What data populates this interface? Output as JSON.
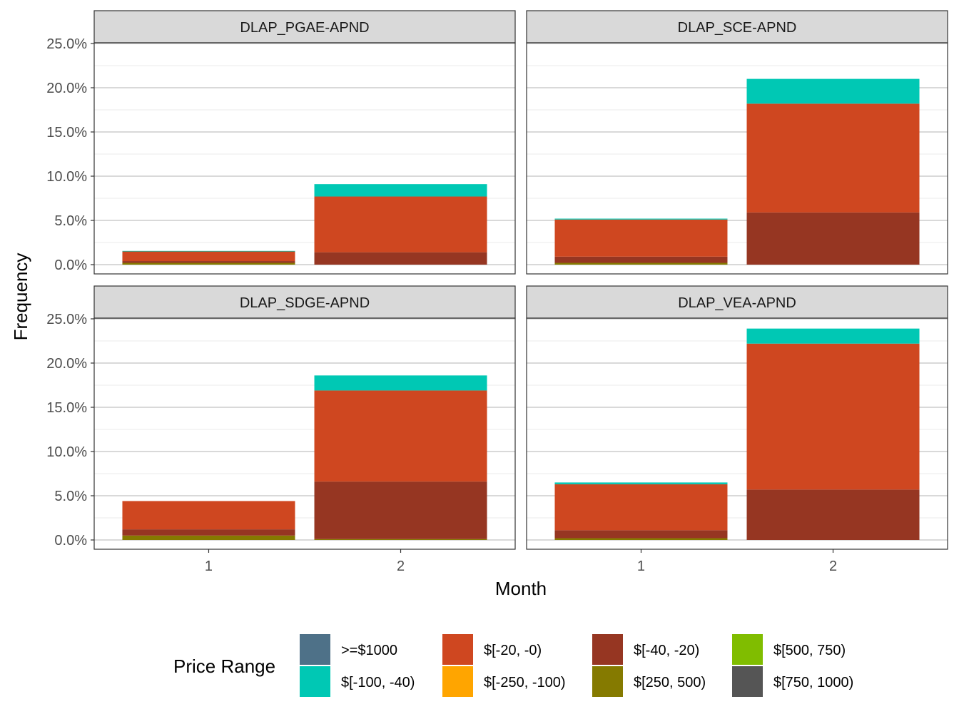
{
  "chart_data": {
    "type": "bar",
    "stacked": true,
    "faceted": true,
    "xlabel": "Month",
    "ylabel": "Frequency",
    "ylim": [
      0,
      0.25
    ],
    "y_ticks": [
      0,
      0.05,
      0.1,
      0.15,
      0.2,
      0.25
    ],
    "y_tick_labels": [
      "0.0%",
      "5.0%",
      "10.0%",
      "15.0%",
      "20.0%",
      "25.0%"
    ],
    "categories": [
      "1",
      "2"
    ],
    "legend": {
      "title": "Price Range",
      "placement": "bottom",
      "items": [
        {
          "label": ">=$1000",
          "color": "#4e7188"
        },
        {
          "label": "$[-100, -40)",
          "color": "#00c8b4"
        },
        {
          "label": "$[-20, -0)",
          "color": "#cf4720"
        },
        {
          "label": "$[-250, -100)",
          "color": "#ffa500"
        },
        {
          "label": "$[-40, -20)",
          "color": "#963622"
        },
        {
          "label": "$[250, 500)",
          "color": "#857a00"
        },
        {
          "label": "$[500, 750)",
          "color": "#80bd00"
        },
        {
          "label": "$[750, 1000)",
          "color": "#555555"
        }
      ]
    },
    "panels": [
      {
        "title": "DLAP_PGAE-APND",
        "series": [
          {
            "name": "$[250, 500)",
            "values": [
              0.002,
              0.0
            ]
          },
          {
            "name": "$[-40, -20)",
            "values": [
              0.002,
              0.014
            ]
          },
          {
            "name": "$[-20, -0)",
            "values": [
              0.011,
              0.063
            ]
          },
          {
            "name": "$[-100, -40)",
            "values": [
              0.0005,
              0.014
            ]
          }
        ]
      },
      {
        "title": "DLAP_SCE-APND",
        "series": [
          {
            "name": "$[250, 500)",
            "values": [
              0.002,
              0.0
            ]
          },
          {
            "name": "$[-40, -20)",
            "values": [
              0.007,
              0.059
            ]
          },
          {
            "name": "$[-20, -0)",
            "values": [
              0.042,
              0.123
            ]
          },
          {
            "name": "$[-100, -40)",
            "values": [
              0.001,
              0.028
            ]
          }
        ]
      },
      {
        "title": "DLAP_SDGE-APND",
        "series": [
          {
            "name": "$[250, 500)",
            "values": [
              0.005,
              0.001
            ]
          },
          {
            "name": "$[-40, -20)",
            "values": [
              0.007,
              0.065
            ]
          },
          {
            "name": "$[-20, -0)",
            "values": [
              0.032,
              0.103
            ]
          },
          {
            "name": "$[-100, -40)",
            "values": [
              0.0,
              0.017
            ]
          }
        ]
      },
      {
        "title": "DLAP_VEA-APND",
        "series": [
          {
            "name": "$[250, 500)",
            "values": [
              0.002,
              0.0
            ]
          },
          {
            "name": "$[-40, -20)",
            "values": [
              0.009,
              0.057
            ]
          },
          {
            "name": "$[-20, -0)",
            "values": [
              0.052,
              0.165
            ]
          },
          {
            "name": "$[-100, -40)",
            "values": [
              0.002,
              0.017
            ]
          }
        ]
      }
    ]
  }
}
